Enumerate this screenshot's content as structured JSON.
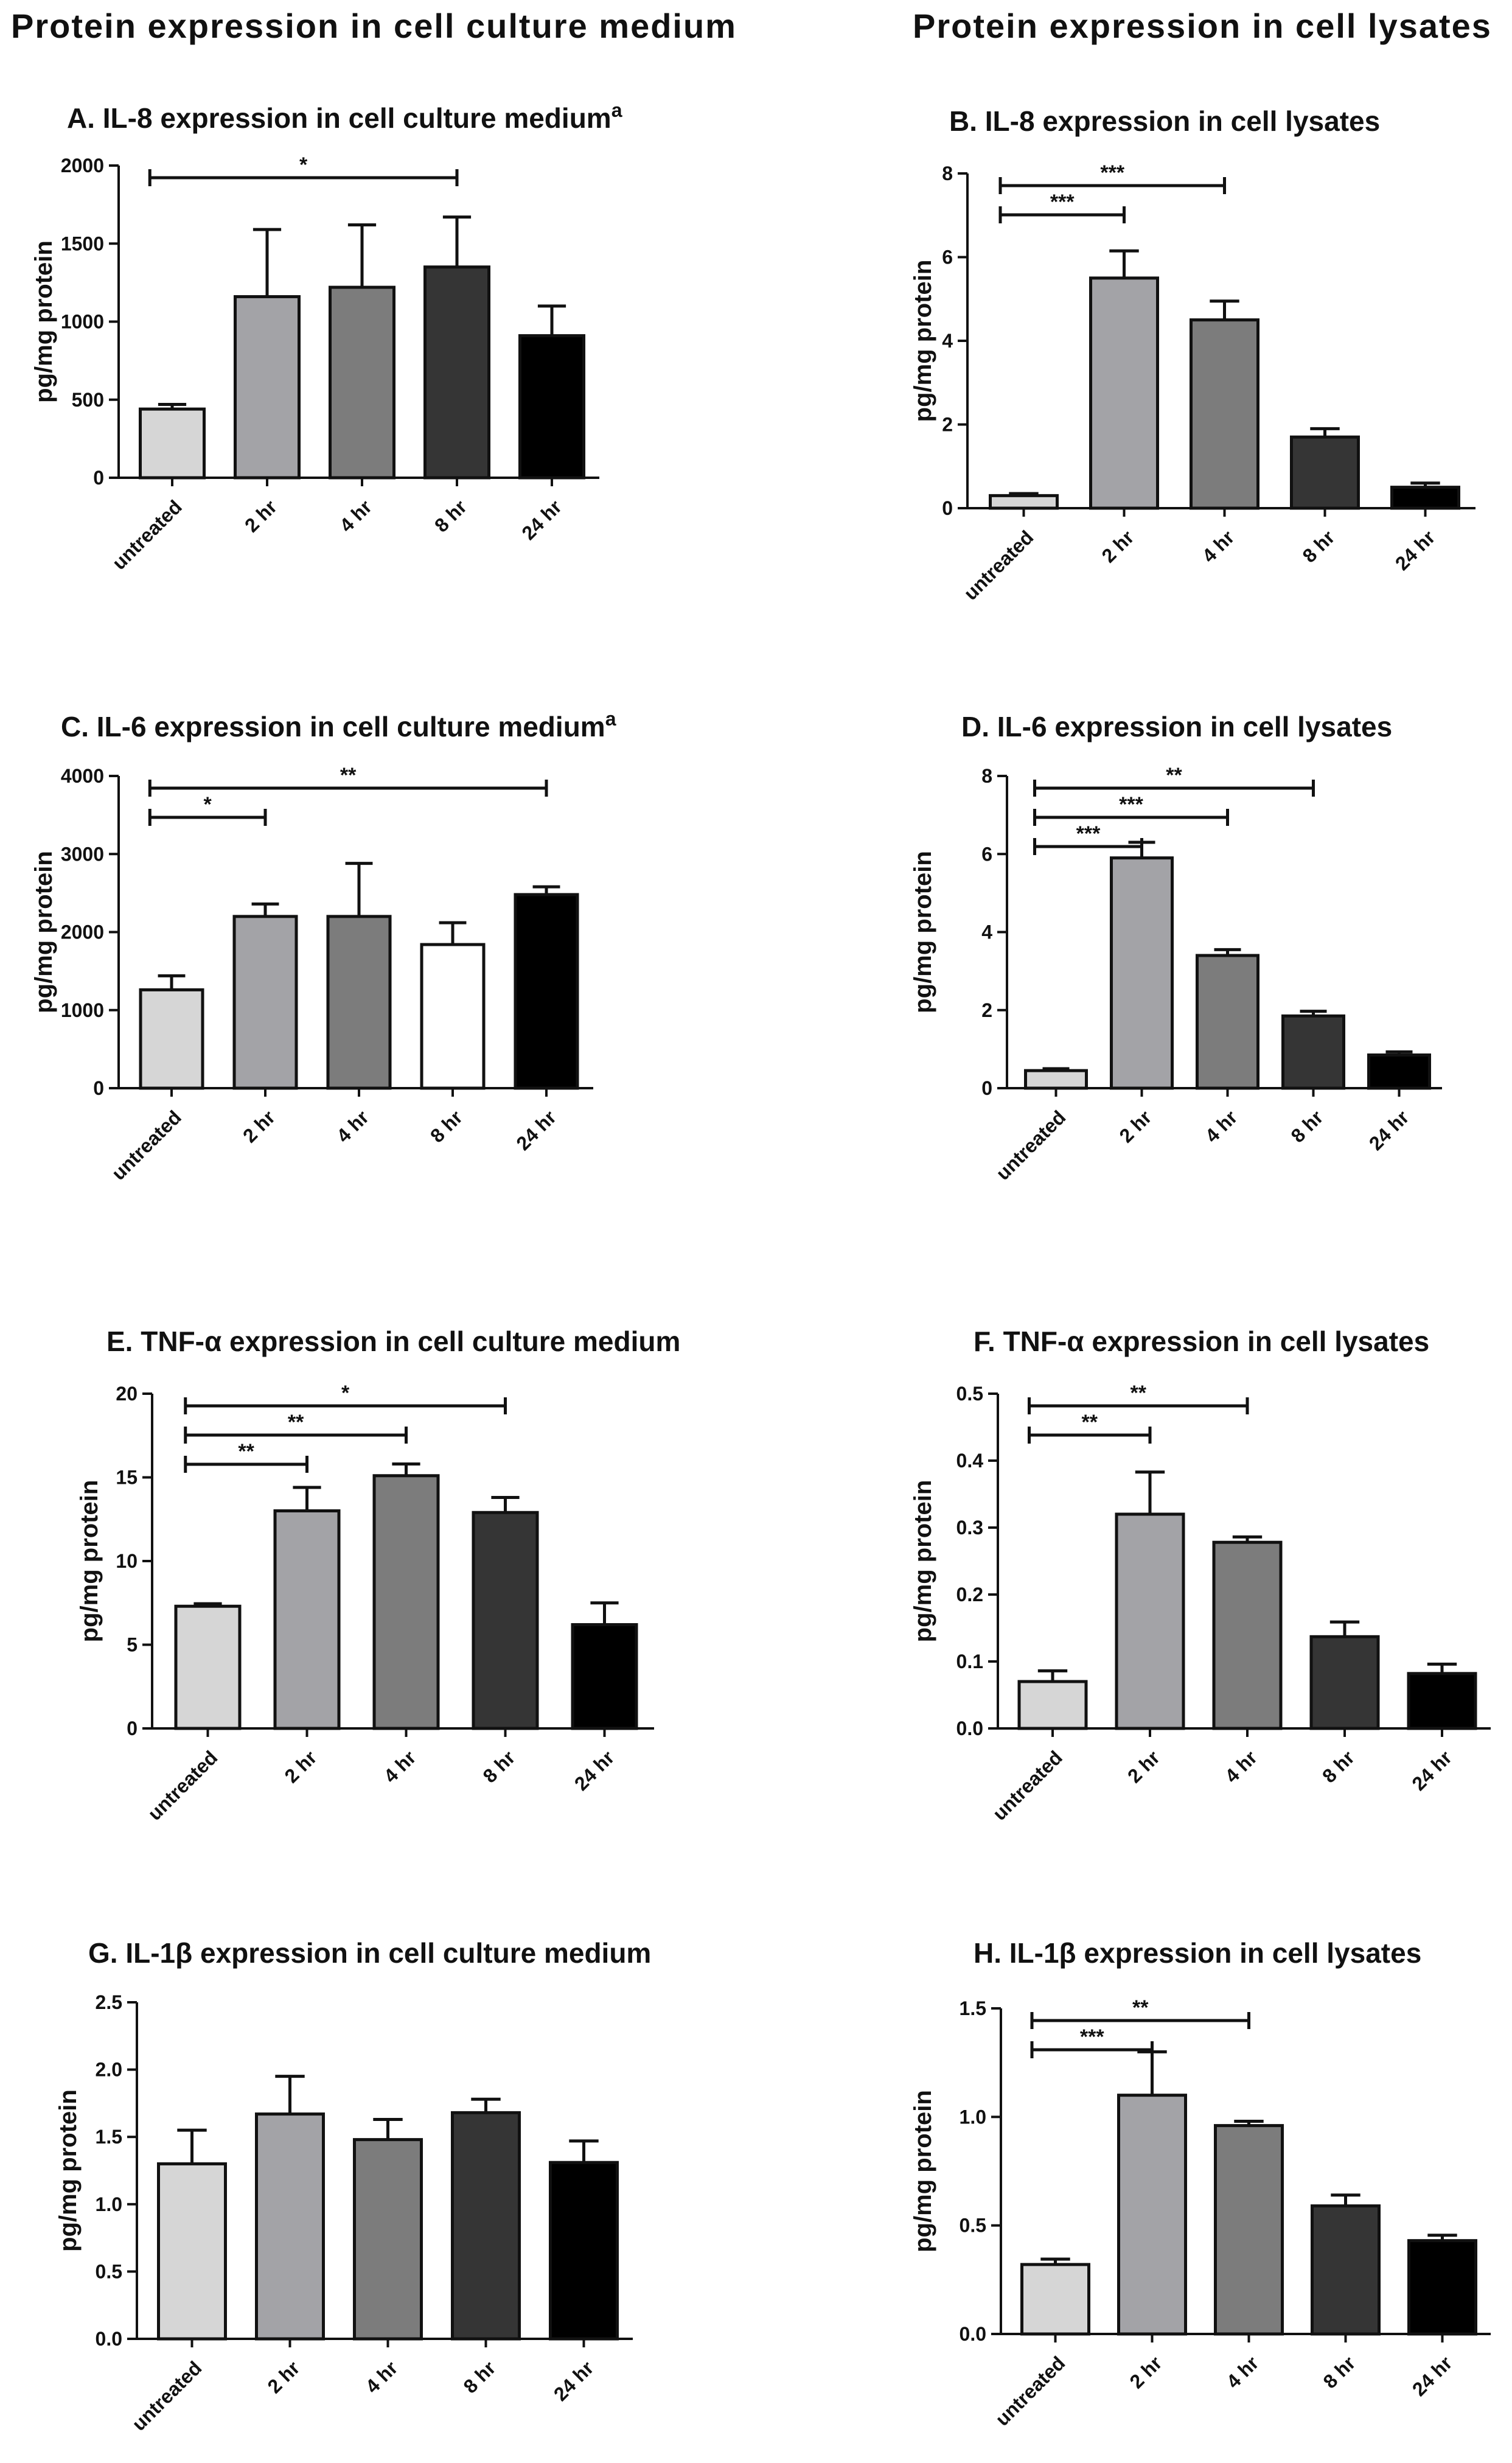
{
  "headers": {
    "left": "Protein expression in cell culture medium",
    "right": "Protein expression in cell lysates"
  },
  "chart_data": [
    {
      "type": "bar",
      "letter": "A.",
      "title": "IL-8 expression in cell culture medium",
      "superscript": "a",
      "ylabel": "pg/mg protein",
      "categories": [
        "untreated",
        "2 hr",
        "4 hr",
        "8 hr",
        "24 hr"
      ],
      "values": [
        440,
        1160,
        1220,
        1350,
        910
      ],
      "errors": [
        30,
        430,
        400,
        320,
        190
      ],
      "colors": [
        "#d6d6d6",
        "#a3a3a7",
        "#7c7c7c",
        "#353535",
        "#000000"
      ],
      "ylim": [
        0,
        2000
      ],
      "yticks": [
        0,
        500,
        1000,
        1500,
        2000
      ],
      "tick_labels": [
        "0",
        "500",
        "1000",
        "1500",
        "2000"
      ],
      "significance": [
        {
          "from": 0,
          "to": 3,
          "label": "*"
        }
      ]
    },
    {
      "type": "bar",
      "letter": "B.",
      "title": "IL-8 expression in cell lysates",
      "superscript": "",
      "ylabel": "pg/mg protein",
      "categories": [
        "untreated",
        "2 hr",
        "4 hr",
        "8 hr",
        "24 hr"
      ],
      "values": [
        0.3,
        5.5,
        4.5,
        1.7,
        0.5
      ],
      "errors": [
        0.05,
        0.65,
        0.45,
        0.2,
        0.1
      ],
      "colors": [
        "#d6d6d6",
        "#a3a3a7",
        "#7c7c7c",
        "#353535",
        "#000000"
      ],
      "ylim": [
        0,
        8
      ],
      "yticks": [
        0,
        2,
        4,
        6,
        8
      ],
      "tick_labels": [
        "0",
        "2",
        "4",
        "6",
        "8"
      ],
      "significance": [
        {
          "from": 0,
          "to": 1,
          "label": "***"
        },
        {
          "from": 0,
          "to": 2,
          "label": "***"
        }
      ]
    },
    {
      "type": "bar",
      "letter": "C.",
      "title": "IL-6  expression in cell culture medium",
      "superscript": "a",
      "ylabel": "pg/mg protein",
      "categories": [
        "untreated",
        "2 hr",
        "4 hr",
        "8 hr",
        "24 hr"
      ],
      "values": [
        1260,
        2200,
        2200,
        1840,
        2480
      ],
      "errors": [
        180,
        160,
        680,
        280,
        100
      ],
      "colors": [
        "#d6d6d6",
        "#a3a3a7",
        "#7c7c7c",
        "#ffffff",
        "#000000"
      ],
      "ylim": [
        0,
        4000
      ],
      "yticks": [
        0,
        1000,
        2000,
        3000,
        4000
      ],
      "tick_labels": [
        "0",
        "1000",
        "2000",
        "3000",
        "4000"
      ],
      "significance": [
        {
          "from": 0,
          "to": 1,
          "label": "*"
        },
        {
          "from": 0,
          "to": 4,
          "label": "**"
        }
      ]
    },
    {
      "type": "bar",
      "letter": "D.",
      "title": "IL-6 expression in cell lysates",
      "superscript": "",
      "ylabel": "pg/mg protein",
      "categories": [
        "untreated",
        "2 hr",
        "4 hr",
        "8 hr",
        "24 hr"
      ],
      "values": [
        0.45,
        5.9,
        3.4,
        1.85,
        0.85
      ],
      "errors": [
        0.05,
        0.4,
        0.15,
        0.12,
        0.08
      ],
      "colors": [
        "#d6d6d6",
        "#a3a3a7",
        "#7c7c7c",
        "#353535",
        "#000000"
      ],
      "ylim": [
        0,
        8
      ],
      "yticks": [
        0,
        2,
        4,
        6,
        8
      ],
      "tick_labels": [
        "0",
        "2",
        "4",
        "6",
        "8"
      ],
      "significance": [
        {
          "from": 0,
          "to": 1,
          "label": "***"
        },
        {
          "from": 0,
          "to": 2,
          "label": "***"
        },
        {
          "from": 0,
          "to": 3,
          "label": "**"
        }
      ]
    },
    {
      "type": "bar",
      "letter": "E.",
      "title": "TNF-α expression in cell culture medium",
      "superscript": "",
      "ylabel": "pg/mg protein",
      "categories": [
        "untreated",
        "2 hr",
        "4 hr",
        "8 hr",
        "24 hr"
      ],
      "values": [
        7.3,
        13.0,
        15.1,
        12.9,
        6.2
      ],
      "errors": [
        0.15,
        1.4,
        0.7,
        0.9,
        1.3
      ],
      "colors": [
        "#d6d6d6",
        "#a3a3a7",
        "#7c7c7c",
        "#353535",
        "#000000"
      ],
      "ylim": [
        0,
        20
      ],
      "yticks": [
        0,
        5,
        10,
        15,
        20
      ],
      "tick_labels": [
        "0",
        "5",
        "10",
        "15",
        "20"
      ],
      "significance": [
        {
          "from": 0,
          "to": 1,
          "label": "**"
        },
        {
          "from": 0,
          "to": 2,
          "label": "**"
        },
        {
          "from": 0,
          "to": 3,
          "label": "*"
        }
      ]
    },
    {
      "type": "bar",
      "letter": "F.",
      "title": "TNF-α expression in cell lysates",
      "superscript": "",
      "ylabel": "pg/mg protein",
      "categories": [
        "untreated",
        "2 hr",
        "4 hr",
        "8 hr",
        "24 hr"
      ],
      "values": [
        0.07,
        0.32,
        0.278,
        0.137,
        0.082
      ],
      "errors": [
        0.016,
        0.063,
        0.008,
        0.022,
        0.014
      ],
      "colors": [
        "#d6d6d6",
        "#a3a3a7",
        "#7c7c7c",
        "#353535",
        "#000000"
      ],
      "ylim": [
        0,
        0.5
      ],
      "yticks": [
        0,
        0.1,
        0.2,
        0.3,
        0.4,
        0.5
      ],
      "tick_labels": [
        "0.0",
        "0.1",
        "0.2",
        "0.3",
        "0.4",
        "0.5"
      ],
      "significance": [
        {
          "from": 0,
          "to": 1,
          "label": "**"
        },
        {
          "from": 0,
          "to": 2,
          "label": "**"
        }
      ]
    },
    {
      "type": "bar",
      "letter": "G.",
      "title": "IL-1β expression in cell culture medium",
      "superscript": "",
      "ylabel": "pg/mg protein",
      "categories": [
        "untreated",
        "2 hr",
        "4 hr",
        "8 hr",
        "24 hr"
      ],
      "values": [
        1.3,
        1.67,
        1.48,
        1.68,
        1.31
      ],
      "errors": [
        0.25,
        0.28,
        0.15,
        0.1,
        0.16
      ],
      "colors": [
        "#d6d6d6",
        "#a3a3a7",
        "#7c7c7c",
        "#353535",
        "#000000"
      ],
      "ylim": [
        0,
        2.5
      ],
      "yticks": [
        0,
        0.5,
        1.0,
        1.5,
        2.0,
        2.5
      ],
      "tick_labels": [
        "0.0",
        "0.5",
        "1.0",
        "1.5",
        "2.0",
        "2.5"
      ],
      "significance": []
    },
    {
      "type": "bar",
      "letter": "H.",
      "title": "IL-1β expression in cell lysates",
      "superscript": "",
      "ylabel": "pg/mg protein",
      "categories": [
        "untreated",
        "2 hr",
        "4 hr",
        "8 hr",
        "24 hr"
      ],
      "values": [
        0.32,
        1.1,
        0.96,
        0.59,
        0.43
      ],
      "errors": [
        0.025,
        0.2,
        0.02,
        0.05,
        0.025
      ],
      "colors": [
        "#d6d6d6",
        "#a3a3a7",
        "#7c7c7c",
        "#353535",
        "#000000"
      ],
      "ylim": [
        0,
        1.5
      ],
      "yticks": [
        0,
        0.5,
        1.0,
        1.5
      ],
      "tick_labels": [
        "0.0",
        "0.5",
        "1.0",
        "1.5"
      ],
      "significance": [
        {
          "from": 0,
          "to": 1,
          "label": "***"
        },
        {
          "from": 0,
          "to": 2,
          "label": "**"
        }
      ]
    }
  ]
}
